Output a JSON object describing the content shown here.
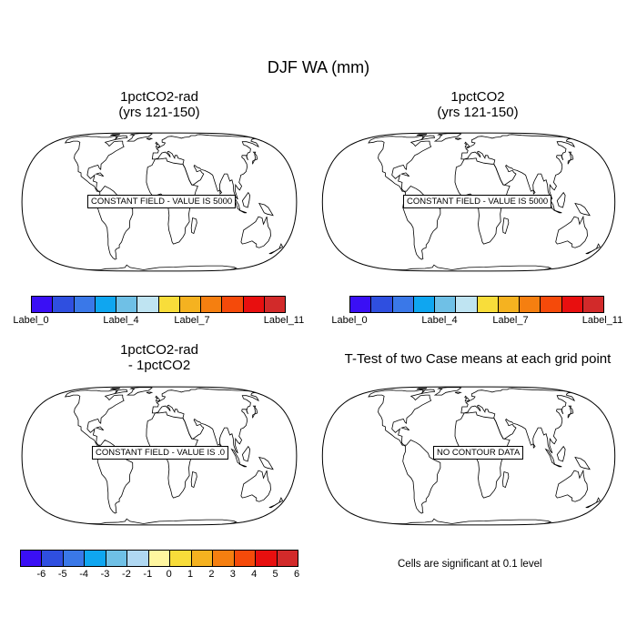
{
  "title": "DJF WA (mm)",
  "panels": [
    {
      "title_line1": "1pctCO2-rad",
      "title_line2": "(yrs 121-150)",
      "field_text": "CONSTANT FIELD - VALUE IS 5000"
    },
    {
      "title_line1": "1pctCO2",
      "title_line2": "(yrs 121-150)",
      "field_text": "CONSTANT FIELD - VALUE IS 5000"
    },
    {
      "title_line1": "1pctCO2-rad",
      "title_line2": "- 1pctCO2",
      "field_text": "CONSTANT FIELD - VALUE IS .0"
    },
    {
      "title_line1": "T-Test of two Case means at each grid point",
      "title_line2": "",
      "field_text": "NO CONTOUR DATA"
    }
  ],
  "colorbar_case": {
    "colors": [
      "#3a0ff5",
      "#2f4fe0",
      "#3a78e8",
      "#0fa6f0",
      "#6fc0e6",
      "#bfe4f2",
      "#f8dd3a",
      "#f5b220",
      "#f57f10",
      "#f54a0a",
      "#e80f0f",
      "#d22a2a"
    ],
    "labels": [
      "Label_0",
      "Label_4",
      "Label_7",
      "Label_11"
    ]
  },
  "colorbar_diff": {
    "colors": [
      "#3a0ff5",
      "#2f4fe0",
      "#3a78e8",
      "#0fa6f0",
      "#6fc0e6",
      "#b0d8f2",
      "#fff6a0",
      "#f8dd3a",
      "#f5b220",
      "#f57f10",
      "#f54a0a",
      "#e80f0f",
      "#d22a2a"
    ],
    "labels": [
      "-6",
      "-5",
      "-4",
      "-3",
      "-2",
      "-1",
      "0",
      "1",
      "2",
      "3",
      "4",
      "5",
      "6"
    ]
  },
  "significance_note": "Cells are significant at 0.1 level"
}
